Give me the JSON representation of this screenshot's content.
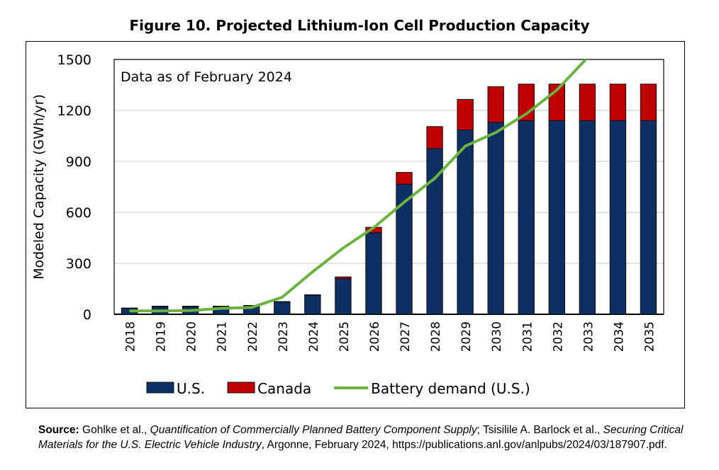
{
  "chart_data": {
    "type": "bar",
    "stacked": true,
    "title": "Figure 10. Projected Lithium-Ion Cell Production Capacity",
    "annotation": "Data as of February 2024",
    "ylabel": "Modeled Capacity (GWh/yr)",
    "xlabel": "",
    "ylim": [
      0,
      1500
    ],
    "yticks": [
      0,
      300,
      600,
      900,
      1200,
      1500
    ],
    "grid": true,
    "legend_position": "bottom",
    "categories": [
      "2018",
      "2019",
      "2020",
      "2021",
      "2022",
      "2023",
      "2024",
      "2025",
      "2026",
      "2027",
      "2028",
      "2029",
      "2030",
      "2031",
      "2032",
      "2033",
      "2034",
      "2035"
    ],
    "series": [
      {
        "name": "U.S.",
        "type": "bar",
        "color": "#0d2f63",
        "values": [
          35,
          45,
          45,
          45,
          48,
          72,
          112,
          210,
          480,
          765,
          975,
          1085,
          1130,
          1140,
          1140,
          1140,
          1140,
          1140
        ]
      },
      {
        "name": "Canada",
        "type": "bar",
        "color": "#c00000",
        "values": [
          2,
          3,
          3,
          3,
          4,
          3,
          3,
          10,
          32,
          70,
          130,
          180,
          210,
          215,
          215,
          215,
          215,
          215
        ]
      },
      {
        "name": "Battery demand (U.S.)",
        "type": "line",
        "color": "#6ab33e",
        "values": [
          20,
          20,
          22,
          35,
          40,
          100,
          250,
          390,
          510,
          660,
          800,
          990,
          1070,
          1180,
          1320,
          1510,
          null,
          null
        ]
      }
    ]
  },
  "source": {
    "label": "Source:",
    "part1": " Gohlke et al., ",
    "title1": "Quantification of Commercially Planned Battery Component Supply",
    "part2": "; Tsisilile A. Barlock et al., ",
    "title2": "Securing Critical Materials for the U.S. Electric Vehicle Industry",
    "part3": ", Argonne, February 2024, https://publications.anl.gov/anlpubs/2024/03/187907.pdf."
  }
}
